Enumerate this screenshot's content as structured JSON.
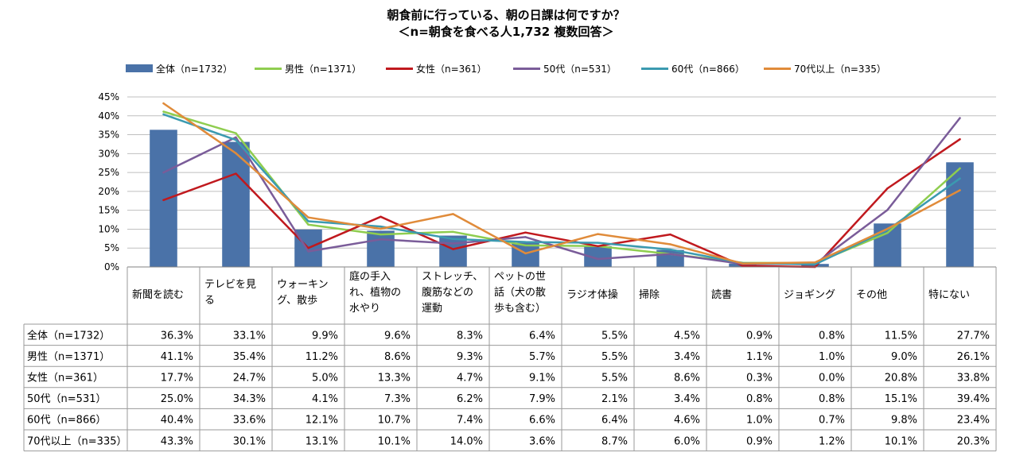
{
  "chart_data": {
    "type": "bar",
    "title": "朝食前に行っている、朝の日課は何ですか？",
    "subtitle": "＜n=朝食を食べる人1,732 複数回答＞",
    "yticks": [
      "0%",
      "5%",
      "10%",
      "15%",
      "20%",
      "25%",
      "30%",
      "35%",
      "40%",
      "45%"
    ],
    "ylim": [
      0,
      45
    ],
    "grid": true,
    "legend_position": "top",
    "categories": [
      "新聞を読む",
      "テレビを見る",
      "ウォーキング、散歩",
      "庭の手入れ、植物の水やり",
      "ストレッチ、腹筋などの運動",
      "ペットの世話（犬の散歩も含む）",
      "ラジオ体操",
      "掃除",
      "読書",
      "ジョギング",
      "その他",
      "特にない"
    ],
    "category_lines": [
      [
        "新聞を読む"
      ],
      [
        "テレビを見",
        "る"
      ],
      [
        "ウォーキン",
        "グ、散歩"
      ],
      [
        "庭の手入",
        "れ、植物の",
        "水やり"
      ],
      [
        "ストレッチ、",
        "腹筋などの",
        "運動"
      ],
      [
        "ペットの世",
        "話（犬の散",
        "歩も含む）"
      ],
      [
        "ラジオ体操"
      ],
      [
        "掃除"
      ],
      [
        "読書"
      ],
      [
        "ジョギング"
      ],
      [
        "その他"
      ],
      [
        "特にない"
      ]
    ],
    "series": [
      {
        "name": "全体（n=1732）",
        "kind": "bar",
        "color": "#4a72a8",
        "values": [
          36.3,
          33.1,
          9.9,
          9.6,
          8.3,
          6.4,
          5.5,
          4.5,
          0.9,
          0.8,
          11.5,
          27.7
        ],
        "labels": [
          "36.3%",
          "33.1%",
          "9.9%",
          "9.6%",
          "8.3%",
          "6.4%",
          "5.5%",
          "4.5%",
          "0.9%",
          "0.8%",
          "11.5%",
          "27.7%"
        ]
      },
      {
        "name": "男性（n=1371）",
        "kind": "line",
        "color": "#8fcd4f",
        "values": [
          41.1,
          35.4,
          11.2,
          8.6,
          9.3,
          5.7,
          5.5,
          3.4,
          1.1,
          1.0,
          9.0,
          26.1
        ],
        "labels": [
          "41.1%",
          "35.4%",
          "11.2%",
          "8.6%",
          "9.3%",
          "5.7%",
          "5.5%",
          "3.4%",
          "1.1%",
          "1.0%",
          "9.0%",
          "26.1%"
        ]
      },
      {
        "name": "女性（n=361）",
        "kind": "line",
        "color": "#c0191e",
        "values": [
          17.7,
          24.7,
          5.0,
          13.3,
          4.7,
          9.1,
          5.5,
          8.6,
          0.3,
          0.0,
          20.8,
          33.8
        ],
        "labels": [
          "17.7%",
          "24.7%",
          "5.0%",
          "13.3%",
          "4.7%",
          "9.1%",
          "5.5%",
          "8.6%",
          "0.3%",
          "0.0%",
          "20.8%",
          "33.8%"
        ]
      },
      {
        "name": "50代（n=531）",
        "kind": "line",
        "color": "#7a5c99",
        "values": [
          25.0,
          34.3,
          4.1,
          7.3,
          6.2,
          7.9,
          2.1,
          3.4,
          0.8,
          0.8,
          15.1,
          39.4
        ],
        "labels": [
          "25.0%",
          "34.3%",
          "4.1%",
          "7.3%",
          "6.2%",
          "7.9%",
          "2.1%",
          "3.4%",
          "0.8%",
          "0.8%",
          "15.1%",
          "39.4%"
        ]
      },
      {
        "name": "60代（n=866）",
        "kind": "line",
        "color": "#3b9ab0",
        "values": [
          40.4,
          33.6,
          12.1,
          10.7,
          7.4,
          6.6,
          6.4,
          4.6,
          1.0,
          0.7,
          9.8,
          23.4
        ],
        "labels": [
          "40.4%",
          "33.6%",
          "12.1%",
          "10.7%",
          "7.4%",
          "6.6%",
          "6.4%",
          "4.6%",
          "1.0%",
          "0.7%",
          "9.8%",
          "23.4%"
        ]
      },
      {
        "name": "70代以上（n=335）",
        "kind": "line",
        "color": "#e08b3a",
        "values": [
          43.3,
          30.1,
          13.1,
          10.1,
          14.0,
          3.6,
          8.7,
          6.0,
          0.9,
          1.2,
          10.1,
          20.3
        ],
        "labels": [
          "43.3%",
          "30.1%",
          "13.1%",
          "10.1%",
          "14.0%",
          "3.6%",
          "8.7%",
          "6.0%",
          "0.9%",
          "1.2%",
          "10.1%",
          "20.3%"
        ]
      }
    ]
  }
}
